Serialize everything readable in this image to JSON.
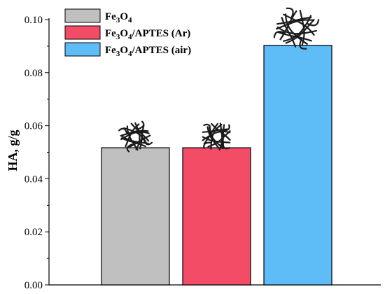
{
  "chart_data": {
    "type": "bar",
    "title": "",
    "xlabel": "",
    "ylabel": "HA, g/g",
    "ylim": [
      0,
      0.1
    ],
    "yticks": [
      "0.00",
      "0.02",
      "0.04",
      "0.06",
      "0.08",
      "0.10"
    ],
    "grid": false,
    "legend_position": "top-left",
    "categories": [
      "Fe3O4",
      "Fe3O4/APTES (Ar)",
      "Fe3O4/APTES (air)"
    ],
    "series": [
      {
        "values": [
          0.0517,
          0.0517,
          0.0903
        ],
        "colors": [
          "#c0c0c0",
          "#f24c67",
          "#5ebcf7"
        ]
      }
    ],
    "legend": [
      {
        "base": "Fe",
        "sub1": "3",
        "mid": "O",
        "sub2": "4",
        "suffix": "",
        "color": "#c0c0c0"
      },
      {
        "base": "Fe",
        "sub1": "3",
        "mid": "O",
        "sub2": "4",
        "suffix": "/APTES (Ar)",
        "color": "#f24c67"
      },
      {
        "base": "Fe",
        "sub1": "3",
        "mid": "O",
        "sub2": "4",
        "suffix": "/APTES (air)",
        "color": "#5ebcf7"
      }
    ],
    "annotations": [
      "fiber-tangle-icon",
      "fiber-tangle-icon",
      "fiber-tangle-icon"
    ]
  }
}
